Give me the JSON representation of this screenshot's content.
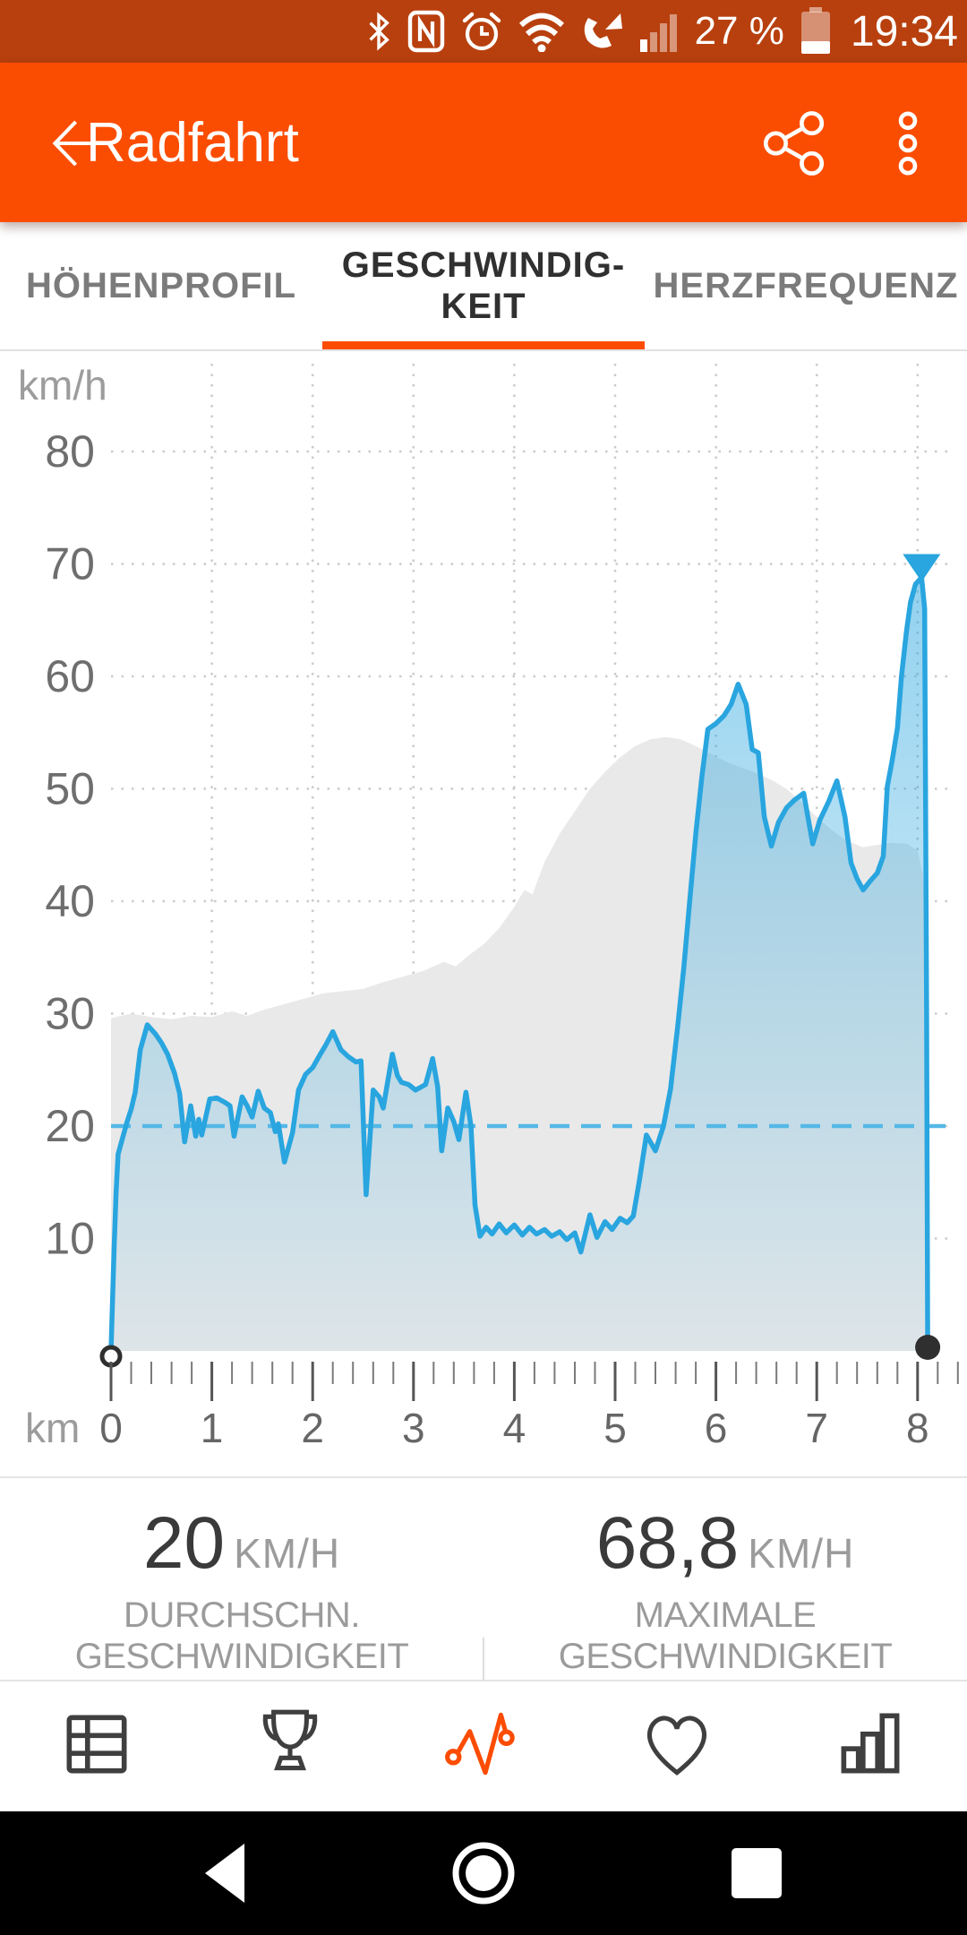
{
  "status_bar": {
    "battery_percent": "27 %",
    "time": "19:34",
    "icons": [
      "bluetooth-icon",
      "nfc-icon",
      "alarm-icon",
      "wifi-icon",
      "wifi-calling-icon",
      "signal-icon",
      "battery-icon"
    ]
  },
  "header": {
    "title": "Radfahrt"
  },
  "tabs": {
    "items": [
      {
        "label": "HÖHENPROFIL",
        "active": false
      },
      {
        "label": "GESCHWINDIG-\nKEIT",
        "active": true
      },
      {
        "label": "HERZFREQUENZ",
        "active": false
      }
    ],
    "accent_color": "#fc4c02"
  },
  "chart_data": {
    "type": "area",
    "title": "",
    "xlabel": "km",
    "ylabel": "km/h",
    "xlim": [
      0,
      8.35
    ],
    "ylim": [
      0,
      87
    ],
    "x_ticks": [
      0,
      1,
      2,
      3,
      4,
      5,
      6,
      7,
      8
    ],
    "y_ticks": [
      10,
      20,
      30,
      40,
      50,
      60,
      70,
      80
    ],
    "minor_ticks_per_interval": 4,
    "grid": "dotted",
    "legend_position": "none",
    "average_line": {
      "value": 20,
      "color": "#54b8e6"
    },
    "max_marker": {
      "x": 8.04,
      "triangle_y": 70,
      "value": 68.8,
      "color": "#29a5df"
    },
    "start_marker": {
      "x": 0,
      "y": 0
    },
    "end_marker": {
      "x": 8.1,
      "y": 0
    },
    "series": [
      {
        "name": "elevation_background",
        "type": "area",
        "color": "#e9e9e9",
        "points": [
          [
            0,
            29.6
          ],
          [
            0.2,
            30.0
          ],
          [
            0.4,
            29.7
          ],
          [
            0.6,
            29.5
          ],
          [
            0.8,
            29.8
          ],
          [
            1.0,
            29.7
          ],
          [
            1.2,
            30.2
          ],
          [
            1.35,
            29.8
          ],
          [
            1.5,
            30.3
          ],
          [
            1.7,
            30.8
          ],
          [
            1.9,
            31.3
          ],
          [
            2.1,
            31.8
          ],
          [
            2.3,
            32.0
          ],
          [
            2.5,
            32.2
          ],
          [
            2.7,
            32.8
          ],
          [
            2.9,
            33.3
          ],
          [
            3.1,
            33.8
          ],
          [
            3.3,
            34.6
          ],
          [
            3.42,
            34.2
          ],
          [
            3.55,
            35.2
          ],
          [
            3.7,
            36.2
          ],
          [
            3.85,
            37.6
          ],
          [
            4.0,
            39.5
          ],
          [
            4.1,
            41.0
          ],
          [
            4.18,
            40.6
          ],
          [
            4.3,
            43.5
          ],
          [
            4.45,
            46.0
          ],
          [
            4.6,
            48.0
          ],
          [
            4.75,
            50.0
          ],
          [
            4.9,
            51.5
          ],
          [
            5.05,
            52.8
          ],
          [
            5.2,
            53.8
          ],
          [
            5.35,
            54.4
          ],
          [
            5.5,
            54.6
          ],
          [
            5.65,
            54.4
          ],
          [
            5.8,
            53.8
          ],
          [
            5.95,
            53.1
          ],
          [
            6.1,
            52.4
          ],
          [
            6.25,
            51.9
          ],
          [
            6.4,
            51.4
          ],
          [
            6.55,
            50.8
          ],
          [
            6.7,
            50.0
          ],
          [
            6.85,
            48.8
          ],
          [
            7.0,
            47.5
          ],
          [
            7.15,
            46.3
          ],
          [
            7.3,
            45.4
          ],
          [
            7.45,
            44.8
          ],
          [
            7.6,
            45.0
          ],
          [
            7.75,
            45.2
          ],
          [
            7.9,
            45.1
          ],
          [
            8.0,
            44.5
          ],
          [
            8.05,
            42.5
          ],
          [
            8.1,
            37.0
          ]
        ]
      },
      {
        "name": "speed_kmh",
        "type": "area-line",
        "line_color": "#29a5df",
        "points": [
          [
            0,
            0
          ],
          [
            0.03,
            9
          ],
          [
            0.05,
            14
          ],
          [
            0.07,
            17.5
          ],
          [
            0.11,
            18.8
          ],
          [
            0.16,
            20.4
          ],
          [
            0.2,
            21.5
          ],
          [
            0.24,
            23
          ],
          [
            0.29,
            26.8
          ],
          [
            0.36,
            29
          ],
          [
            0.44,
            28.2
          ],
          [
            0.5,
            27.4
          ],
          [
            0.56,
            26.4
          ],
          [
            0.63,
            24.7
          ],
          [
            0.68,
            22.9
          ],
          [
            0.73,
            18.6
          ],
          [
            0.79,
            21.8
          ],
          [
            0.84,
            19.1
          ],
          [
            0.87,
            20.6
          ],
          [
            0.9,
            19.2
          ],
          [
            0.98,
            22.4
          ],
          [
            1.05,
            22.5
          ],
          [
            1.13,
            22.1
          ],
          [
            1.18,
            21.8
          ],
          [
            1.22,
            19.1
          ],
          [
            1.3,
            22.6
          ],
          [
            1.35,
            21.8
          ],
          [
            1.4,
            20.8
          ],
          [
            1.46,
            23.1
          ],
          [
            1.52,
            21.6
          ],
          [
            1.58,
            21.2
          ],
          [
            1.63,
            19.5
          ],
          [
            1.66,
            20.2
          ],
          [
            1.72,
            16.8
          ],
          [
            1.8,
            19.4
          ],
          [
            1.86,
            23.2
          ],
          [
            1.93,
            24.6
          ],
          [
            2.0,
            25.2
          ],
          [
            2.07,
            26.3
          ],
          [
            2.13,
            27.2
          ],
          [
            2.2,
            28.4
          ],
          [
            2.28,
            26.8
          ],
          [
            2.35,
            26.2
          ],
          [
            2.43,
            25.7
          ],
          [
            2.48,
            25.8
          ],
          [
            2.53,
            13.9
          ],
          [
            2.6,
            23.2
          ],
          [
            2.66,
            22.6
          ],
          [
            2.7,
            21.6
          ],
          [
            2.79,
            26.4
          ],
          [
            2.84,
            24.5
          ],
          [
            2.88,
            23.9
          ],
          [
            2.95,
            23.7
          ],
          [
            3.02,
            23.2
          ],
          [
            3.08,
            23.5
          ],
          [
            3.12,
            23.7
          ],
          [
            3.19,
            26.0
          ],
          [
            3.24,
            23.5
          ],
          [
            3.28,
            17.8
          ],
          [
            3.34,
            21.6
          ],
          [
            3.4,
            20.4
          ],
          [
            3.45,
            18.8
          ],
          [
            3.52,
            23.0
          ],
          [
            3.57,
            20.0
          ],
          [
            3.61,
            13.0
          ],
          [
            3.66,
            10.2
          ],
          [
            3.72,
            11.0
          ],
          [
            3.78,
            10.4
          ],
          [
            3.85,
            11.3
          ],
          [
            3.92,
            10.5
          ],
          [
            4.0,
            11.2
          ],
          [
            4.08,
            10.3
          ],
          [
            4.15,
            11.0
          ],
          [
            4.22,
            10.4
          ],
          [
            4.3,
            10.8
          ],
          [
            4.37,
            10.2
          ],
          [
            4.45,
            10.6
          ],
          [
            4.52,
            9.9
          ],
          [
            4.6,
            10.5
          ],
          [
            4.66,
            8.8
          ],
          [
            4.75,
            12.1
          ],
          [
            4.82,
            10.1
          ],
          [
            4.9,
            11.5
          ],
          [
            4.97,
            10.8
          ],
          [
            5.05,
            11.8
          ],
          [
            5.12,
            11.4
          ],
          [
            5.18,
            12.0
          ],
          [
            5.24,
            15.1
          ],
          [
            5.31,
            19.2
          ],
          [
            5.4,
            17.8
          ],
          [
            5.48,
            20.0
          ],
          [
            5.55,
            23.3
          ],
          [
            5.62,
            28.8
          ],
          [
            5.68,
            34.0
          ],
          [
            5.74,
            40.0
          ],
          [
            5.8,
            46.0
          ],
          [
            5.86,
            51.0
          ],
          [
            5.92,
            55.3
          ],
          [
            6.0,
            55.8
          ],
          [
            6.08,
            56.5
          ],
          [
            6.15,
            57.5
          ],
          [
            6.22,
            59.3
          ],
          [
            6.3,
            57.5
          ],
          [
            6.36,
            53.5
          ],
          [
            6.42,
            53.2
          ],
          [
            6.48,
            47.5
          ],
          [
            6.55,
            44.9
          ],
          [
            6.62,
            47.0
          ],
          [
            6.7,
            48.3
          ],
          [
            6.78,
            49.0
          ],
          [
            6.87,
            49.6
          ],
          [
            6.96,
            45.1
          ],
          [
            7.03,
            47.2
          ],
          [
            7.12,
            48.9
          ],
          [
            7.2,
            50.7
          ],
          [
            7.28,
            47.5
          ],
          [
            7.34,
            43.4
          ],
          [
            7.4,
            42.0
          ],
          [
            7.46,
            41.0
          ],
          [
            7.53,
            41.8
          ],
          [
            7.6,
            42.5
          ],
          [
            7.66,
            44.0
          ],
          [
            7.7,
            50.2
          ],
          [
            7.75,
            52.6
          ],
          [
            7.8,
            55.4
          ],
          [
            7.84,
            60.0
          ],
          [
            7.89,
            64.0
          ],
          [
            7.93,
            66.6
          ],
          [
            7.98,
            68.2
          ],
          [
            8.04,
            68.8
          ],
          [
            8.07,
            66.0
          ],
          [
            8.09,
            30
          ],
          [
            8.1,
            0
          ]
        ]
      }
    ]
  },
  "stats": {
    "items": [
      {
        "value": "20",
        "unit": "KM/H",
        "label": "DURCHSCHN. GESCHWINDIGKEIT"
      },
      {
        "value": "68,8",
        "unit": "KM/H",
        "label": "MAXIMALE GESCHWINDIGKEIT"
      }
    ]
  },
  "tab_bar": {
    "items": [
      "feed-icon",
      "trophy-icon",
      "analysis-icon",
      "heart-icon",
      "stats-icon"
    ],
    "active_index": 2,
    "active_color": "#fc4c02"
  }
}
